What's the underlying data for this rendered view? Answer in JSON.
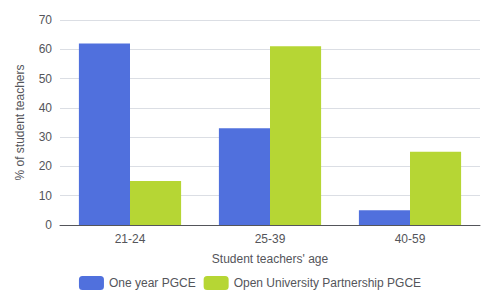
{
  "chart_data": {
    "type": "bar",
    "xlabel": "Student teachers' age",
    "ylabel": "% of student teachers",
    "categories": [
      "21-24",
      "25-39",
      "40-59"
    ],
    "series": [
      {
        "name": "One year PGCE",
        "values": [
          62,
          33,
          5
        ]
      },
      {
        "name": "Open University Partnership PGCE",
        "values": [
          15,
          61,
          25
        ]
      }
    ],
    "ylim": [
      0,
      70
    ],
    "yticks": [
      0,
      10,
      20,
      30,
      40,
      50,
      60,
      70
    ],
    "grid": true,
    "legend": "bottom"
  }
}
